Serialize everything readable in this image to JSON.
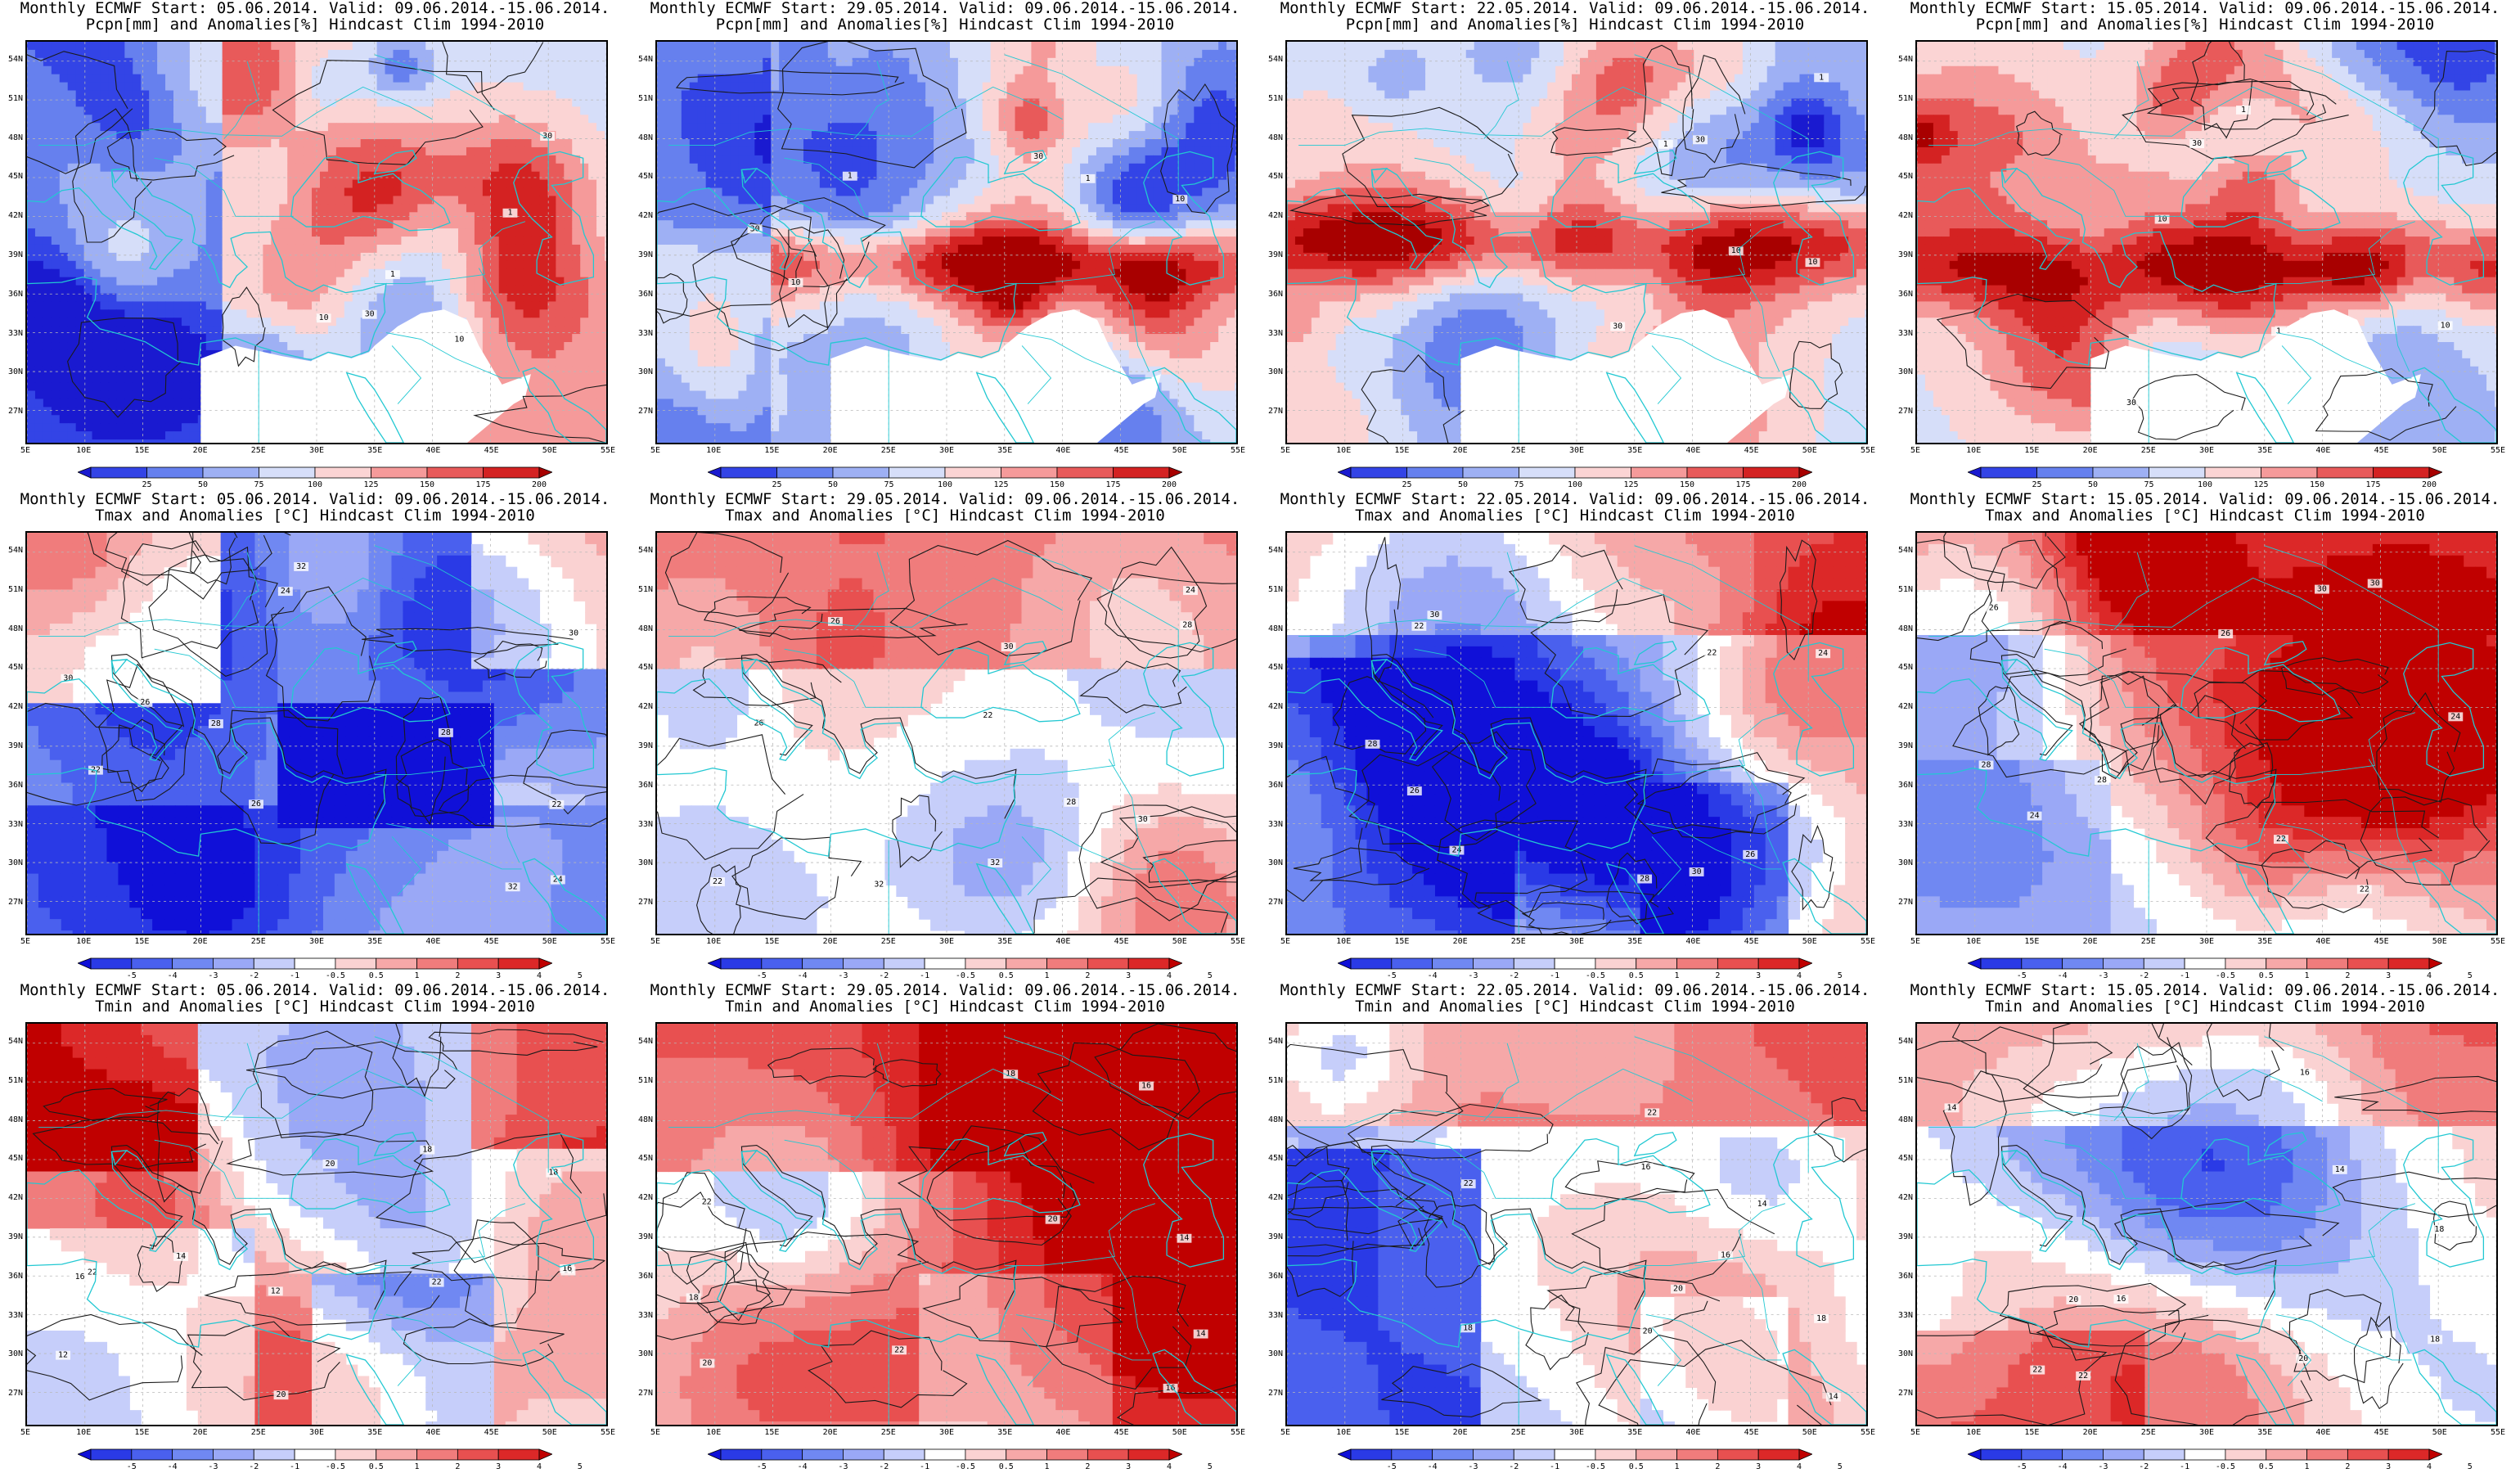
{
  "panels": [
    {
      "title1": "Monthly ECMWF Start: 05.06.2014. Valid: 09.06.2014.-15.06.2014.",
      "title2": "Pcpn[mm] and Anomalies[%] Hindcast Clim 1994-2010",
      "variable": "precip",
      "start": "05.06.2014."
    },
    {
      "title1": "Monthly ECMWF Start: 29.05.2014. Valid: 09.06.2014.-15.06.2014.",
      "title2": "Pcpn[mm] and Anomalies[%] Hindcast Clim 1994-2010",
      "variable": "precip",
      "start": "29.05.2014."
    },
    {
      "title1": "Monthly ECMWF Start: 22.05.2014. Valid: 09.06.2014.-15.06.2014.",
      "title2": "Pcpn[mm] and Anomalies[%] Hindcast Clim 1994-2010",
      "variable": "precip",
      "start": "22.05.2014."
    },
    {
      "title1": "Monthly ECMWF Start: 15.05.2014. Valid: 09.06.2014.-15.06.2014.",
      "title2": "Pcpn[mm] and Anomalies[%] Hindcast Clim 1994-2010",
      "variable": "precip",
      "start": "15.05.2014."
    },
    {
      "title1": "Monthly ECMWF Start: 05.06.2014. Valid: 09.06.2014.-15.06.2014.",
      "title2": "Tmax and Anomalies [°C] Hindcast Clim 1994-2010",
      "variable": "tmax",
      "start": "05.06.2014."
    },
    {
      "title1": "Monthly ECMWF Start: 29.05.2014. Valid: 09.06.2014.-15.06.2014.",
      "title2": "Tmax and Anomalies [°C] Hindcast Clim 1994-2010",
      "variable": "tmax",
      "start": "29.05.2014."
    },
    {
      "title1": "Monthly ECMWF Start: 22.05.2014. Valid: 09.06.2014.-15.06.2014.",
      "title2": "Tmax and Anomalies [°C] Hindcast Clim 1994-2010",
      "variable": "tmax",
      "start": "22.05.2014."
    },
    {
      "title1": "Monthly ECMWF Start: 15.05.2014. Valid: 09.06.2014.-15.06.2014.",
      "title2": "Tmax and Anomalies [°C] Hindcast Clim 1994-2010",
      "variable": "tmax",
      "start": "15.05.2014."
    },
    {
      "title1": "Monthly ECMWF Start: 05.06.2014. Valid: 09.06.2014.-15.06.2014.",
      "title2": "Tmin and Anomalies [°C] Hindcast Clim 1994-2010",
      "variable": "tmin",
      "start": "05.06.2014."
    },
    {
      "title1": "Monthly ECMWF Start: 29.05.2014. Valid: 09.06.2014.-15.06.2014.",
      "title2": "Tmin and Anomalies [°C] Hindcast Clim 1994-2010",
      "variable": "tmin",
      "start": "29.05.2014."
    },
    {
      "title1": "Monthly ECMWF Start: 22.05.2014. Valid: 09.06.2014.-15.06.2014.",
      "title2": "Tmin and Anomalies [°C] Hindcast Clim 1994-2010",
      "variable": "tmin",
      "start": "22.05.2014."
    },
    {
      "title1": "Monthly ECMWF Start: 15.05.2014. Valid: 09.06.2014.-15.06.2014.",
      "title2": "Tmin and Anomalies [°C] Hindcast Clim 1994-2010",
      "variable": "tmin",
      "start": "15.05.2014."
    }
  ],
  "axes": {
    "lat_labels": [
      "54N",
      "51N",
      "48N",
      "45N",
      "42N",
      "39N",
      "36N",
      "33N",
      "30N",
      "27N"
    ],
    "lat_values": [
      54,
      51,
      48,
      45,
      42,
      39,
      36,
      33,
      30,
      27
    ],
    "lat_range": [
      24.5,
      55.5
    ],
    "lon_labels": [
      "5E",
      "10E",
      "15E",
      "20E",
      "25E",
      "30E",
      "35E",
      "40E",
      "45E",
      "50E",
      "55E"
    ],
    "lon_values": [
      5,
      10,
      15,
      20,
      25,
      30,
      35,
      40,
      45,
      50,
      55
    ],
    "lon_range": [
      5,
      55
    ]
  },
  "colorbars": {
    "precip": {
      "labels": [
        "25",
        "50",
        "75",
        "100",
        "125",
        "150",
        "175",
        "200"
      ],
      "colors": [
        "#1a1ad0",
        "#3344e6",
        "#6680ee",
        "#9eb0f4",
        "#d6def9",
        "#fbd4d4",
        "#f59a9a",
        "#e85a5a",
        "#d42222",
        "#a80000"
      ]
    },
    "temp": {
      "labels": [
        "-5",
        "-4",
        "-3",
        "-2",
        "-1",
        "-0.5",
        "0.5",
        "1",
        "2",
        "3",
        "4",
        "5"
      ],
      "colors": [
        "#1010d8",
        "#2a3ae6",
        "#4a60ee",
        "#7088f2",
        "#9aa8f6",
        "#c6cefa",
        "#ffffff",
        "#fad2d2",
        "#f6a8a8",
        "#f07c7c",
        "#e85050",
        "#dc2828",
        "#c00000"
      ]
    }
  },
  "chart_data": [
    {
      "type": "heatmap",
      "title": "Monthly ECMWF Start: 05.06.2014. Valid: 09.06.2014.-15.06.2014. Pcpn[mm] and Anomalies[%] Hindcast Clim 1994-2010",
      "variable": "precipitation anomaly (%)",
      "colorbar_ticks": [
        25,
        50,
        75,
        100,
        125,
        150,
        175,
        200
      ],
      "x_range": [
        5,
        55
      ],
      "y_range": [
        24.5,
        55.5
      ],
      "contour_labels": [
        "30",
        "10",
        "1"
      ]
    },
    {
      "type": "heatmap",
      "title": "Monthly ECMWF Start: 29.05.2014. Valid: 09.06.2014.-15.06.2014. Pcpn[mm] and Anomalies[%] Hindcast Clim 1994-2010",
      "variable": "precipitation anomaly (%)",
      "colorbar_ticks": [
        25,
        50,
        75,
        100,
        125,
        150,
        175,
        200
      ],
      "x_range": [
        5,
        55
      ],
      "y_range": [
        24.5,
        55.5
      ],
      "contour_labels": [
        "10",
        "30",
        "1"
      ]
    },
    {
      "type": "heatmap",
      "title": "Monthly ECMWF Start: 22.05.2014. Valid: 09.06.2014.-15.06.2014. Pcpn[mm] and Anomalies[%] Hindcast Clim 1994-2010",
      "variable": "precipitation anomaly (%)",
      "colorbar_ticks": [
        25,
        50,
        75,
        100,
        125,
        150,
        175,
        200
      ],
      "x_range": [
        5,
        55
      ],
      "y_range": [
        24.5,
        55.5
      ],
      "contour_labels": [
        "10",
        "30",
        "1"
      ]
    },
    {
      "type": "heatmap",
      "title": "Monthly ECMWF Start: 15.05.2014. Valid: 09.06.2014.-15.06.2014. Pcpn[mm] and Anomalies[%] Hindcast Clim 1994-2010",
      "variable": "precipitation anomaly (%)",
      "colorbar_ticks": [
        25,
        50,
        75,
        100,
        125,
        150,
        175,
        200
      ],
      "x_range": [
        5,
        55
      ],
      "y_range": [
        24.5,
        55.5
      ],
      "contour_labels": [
        "10",
        "30",
        "1"
      ]
    },
    {
      "type": "heatmap",
      "title": "Monthly ECMWF Start: 05.06.2014. Valid: 09.06.2014.-15.06.2014. Tmax and Anomalies [°C] Hindcast Clim 1994-2010",
      "variable": "Tmax anomaly (°C)",
      "colorbar_ticks": [
        -5,
        -4,
        -3,
        -2,
        -1,
        -0.5,
        0.5,
        1,
        2,
        3,
        4,
        5
      ],
      "x_range": [
        5,
        55
      ],
      "y_range": [
        24.5,
        55.5
      ],
      "contour_labels": [
        "24",
        "26",
        "28",
        "30",
        "22",
        "32"
      ]
    },
    {
      "type": "heatmap",
      "title": "Monthly ECMWF Start: 29.05.2014. Valid: 09.06.2014.-15.06.2014. Tmax and Anomalies [°C] Hindcast Clim 1994-2010",
      "variable": "Tmax anomaly (°C)",
      "colorbar_ticks": [
        -5,
        -4,
        -3,
        -2,
        -1,
        -0.5,
        0.5,
        1,
        2,
        3,
        4,
        5
      ],
      "x_range": [
        5,
        55
      ],
      "y_range": [
        24.5,
        55.5
      ],
      "contour_labels": [
        "24",
        "26",
        "28",
        "30",
        "22",
        "32"
      ]
    },
    {
      "type": "heatmap",
      "title": "Monthly ECMWF Start: 22.05.2014. Valid: 09.06.2014.-15.06.2014. Tmax and Anomalies [°C] Hindcast Clim 1994-2010",
      "variable": "Tmax anomaly (°C)",
      "colorbar_ticks": [
        -5,
        -4,
        -3,
        -2,
        -1,
        -0.5,
        0.5,
        1,
        2,
        3,
        4,
        5
      ],
      "x_range": [
        5,
        55
      ],
      "y_range": [
        24.5,
        55.5
      ],
      "contour_labels": [
        "24",
        "26",
        "28",
        "30",
        "22"
      ]
    },
    {
      "type": "heatmap",
      "title": "Monthly ECMWF Start: 15.05.2014. Valid: 09.06.2014.-15.06.2014. Tmax and Anomalies [°C] Hindcast Clim 1994-2010",
      "variable": "Tmax anomaly (°C)",
      "colorbar_ticks": [
        -5,
        -4,
        -3,
        -2,
        -1,
        -0.5,
        0.5,
        1,
        2,
        3,
        4,
        5
      ],
      "x_range": [
        5,
        55
      ],
      "y_range": [
        24.5,
        55.5
      ],
      "contour_labels": [
        "24",
        "26",
        "28",
        "30",
        "22"
      ]
    },
    {
      "type": "heatmap",
      "title": "Monthly ECMWF Start: 05.06.2014. Valid: 09.06.2014.-15.06.2014. Tmin and Anomalies [°C] Hindcast Clim 1994-2010",
      "variable": "Tmin anomaly (°C)",
      "colorbar_ticks": [
        -5,
        -4,
        -3,
        -2,
        -1,
        -0.5,
        0.5,
        1,
        2,
        3,
        4,
        5
      ],
      "x_range": [
        5,
        55
      ],
      "y_range": [
        24.5,
        55.5
      ],
      "contour_labels": [
        "14",
        "16",
        "18",
        "20",
        "12",
        "22"
      ]
    },
    {
      "type": "heatmap",
      "title": "Monthly ECMWF Start: 29.05.2014. Valid: 09.06.2014.-15.06.2014. Tmin and Anomalies [°C] Hindcast Clim 1994-2010",
      "variable": "Tmin anomaly (°C)",
      "colorbar_ticks": [
        -5,
        -4,
        -3,
        -2,
        -1,
        -0.5,
        0.5,
        1,
        2,
        3,
        4,
        5
      ],
      "x_range": [
        5,
        55
      ],
      "y_range": [
        24.5,
        55.5
      ],
      "contour_labels": [
        "14",
        "16",
        "18",
        "20",
        "22"
      ]
    },
    {
      "type": "heatmap",
      "title": "Monthly ECMWF Start: 22.05.2014. Valid: 09.06.2014.-15.06.2014. Tmin and Anomalies [°C] Hindcast Clim 1994-2010",
      "variable": "Tmin anomaly (°C)",
      "colorbar_ticks": [
        -5,
        -4,
        -3,
        -2,
        -1,
        -0.5,
        0.5,
        1,
        2,
        3,
        4,
        5
      ],
      "x_range": [
        5,
        55
      ],
      "y_range": [
        24.5,
        55.5
      ],
      "contour_labels": [
        "14",
        "16",
        "18",
        "20",
        "22"
      ]
    },
    {
      "type": "heatmap",
      "title": "Monthly ECMWF Start: 15.05.2014. Valid: 09.06.2014.-15.06.2014. Tmin and Anomalies [°C] Hindcast Clim 1994-2010",
      "variable": "Tmin anomaly (°C)",
      "colorbar_ticks": [
        -5,
        -4,
        -3,
        -2,
        -1,
        -0.5,
        0.5,
        1,
        2,
        3,
        4,
        5
      ],
      "x_range": [
        5,
        55
      ],
      "y_range": [
        24.5,
        55.5
      ],
      "contour_labels": [
        "14",
        "16",
        "18",
        "20",
        "22"
      ]
    }
  ]
}
